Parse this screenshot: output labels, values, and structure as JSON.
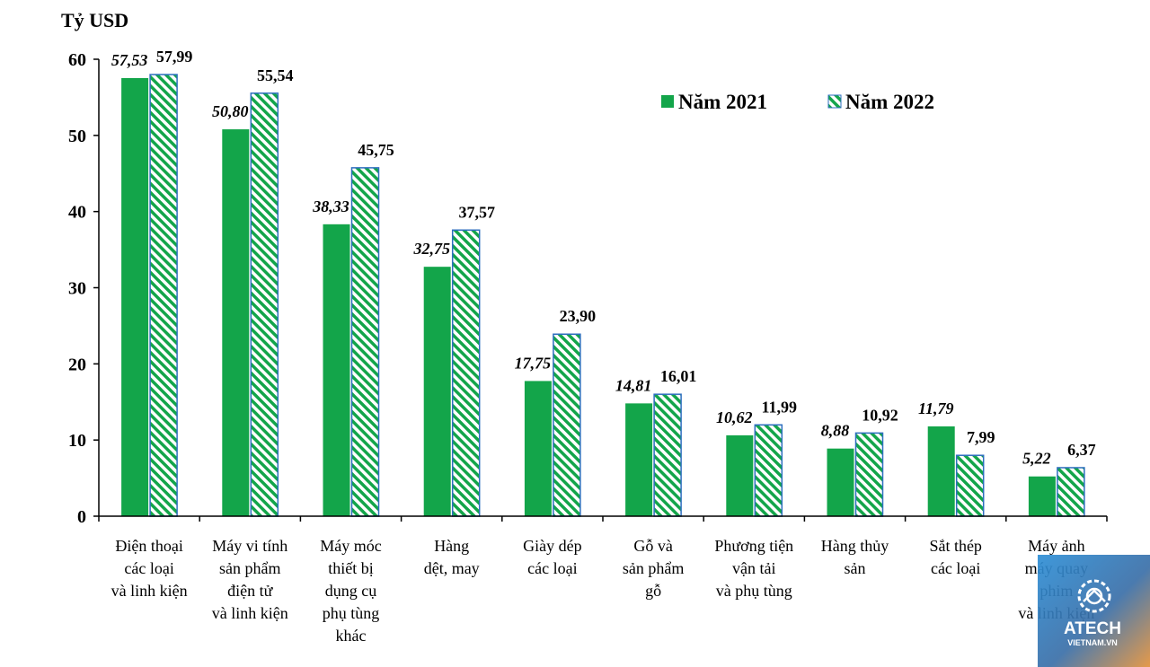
{
  "chart_data": {
    "type": "bar",
    "unit_label": "Tỷ USD",
    "ylim": [
      0,
      60
    ],
    "yticks": [
      "0",
      "10",
      "20",
      "30",
      "40",
      "50",
      "60"
    ],
    "categories": [
      [
        "Điện thoại",
        "các loại",
        "và linh kiện"
      ],
      [
        "Máy vi tính",
        "sản phẩm",
        "điện tử",
        "và linh kiện"
      ],
      [
        "Máy móc",
        "thiết bị",
        "dụng cụ",
        "phụ tùng",
        "khác"
      ],
      [
        "Hàng",
        "dệt, may"
      ],
      [
        "Giày dép",
        "các loại"
      ],
      [
        "Gỗ và",
        "sản phẩm",
        "gỗ"
      ],
      [
        "Phương tiện",
        "vận tải",
        "và phụ tùng"
      ],
      [
        "Hàng thủy",
        "sản"
      ],
      [
        "Sắt thép",
        "các loại"
      ],
      [
        "Máy ảnh",
        "máy quay",
        "phim",
        "và linh kiện"
      ]
    ],
    "series": [
      {
        "name": "Năm 2021",
        "color": "#13a54a",
        "values": [
          57.53,
          50.8,
          38.33,
          32.75,
          17.75,
          14.81,
          10.62,
          8.88,
          11.79,
          5.22
        ],
        "labels": [
          "57,53",
          "50,80",
          "38,33",
          "32,75",
          "17,75",
          "14,81",
          "10,62",
          "8,88",
          "11,79",
          "5,22"
        ]
      },
      {
        "name": "Năm 2022",
        "color": "#13a54a",
        "pattern": "hatched",
        "border": "#2e6fbf",
        "values": [
          57.99,
          55.54,
          45.75,
          37.57,
          23.9,
          16.01,
          11.99,
          10.92,
          7.99,
          6.37
        ],
        "labels": [
          "57,99",
          "55,54",
          "45,75",
          "37,57",
          "23,90",
          "16,01",
          "11,99",
          "10,92",
          "7,99",
          "6,37"
        ]
      }
    ],
    "legend": "top-right",
    "grid": false
  },
  "watermark": {
    "name": "ATECH",
    "sub": "VIETNAM.VN"
  }
}
